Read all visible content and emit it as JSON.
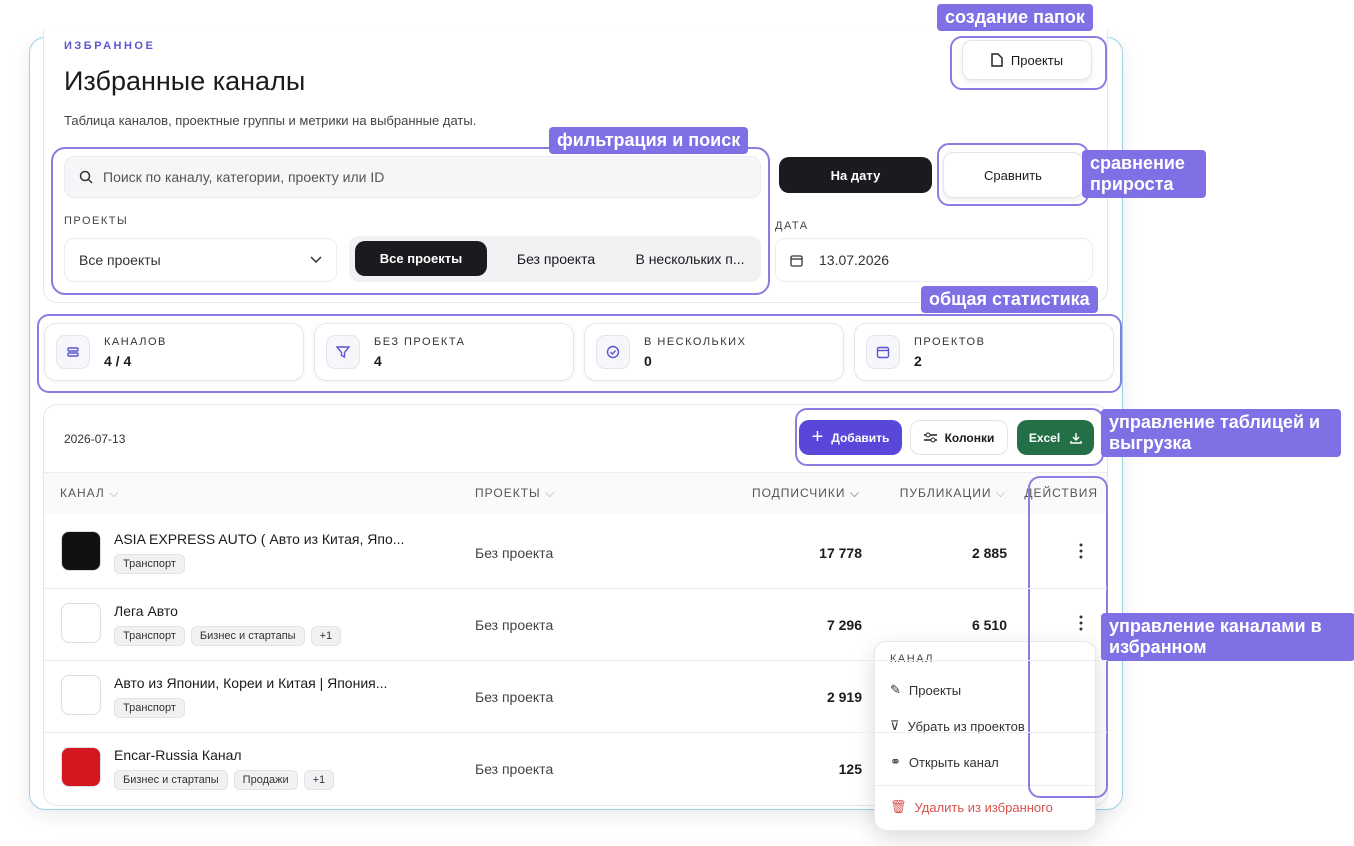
{
  "header": {
    "eyebrow": "ИЗБРАННОЕ",
    "title": "Избранные каналы",
    "subtitle": "Таблица каналов, проектные группы и метрики на выбранные даты.",
    "projects_button": "Проекты"
  },
  "filters": {
    "search_placeholder": "Поиск по каналу, категории, проекту или ID",
    "projects_label": "ПРОЕКТЫ",
    "projects_select": "Все проекты",
    "segments": [
      "Все проекты",
      "Без проекта",
      "В нескольких п..."
    ],
    "mode_buttons": [
      "На дату",
      "Сравнить"
    ],
    "date_label": "ДАТА",
    "date": "13.07.2026"
  },
  "stats": [
    {
      "label": "КАНАЛОВ",
      "value": "4 / 4"
    },
    {
      "label": "БЕЗ ПРОЕКТА",
      "value": "4"
    },
    {
      "label": "В НЕСКОЛЬКИХ",
      "value": "0"
    },
    {
      "label": "ПРОЕКТОВ",
      "value": "2"
    }
  ],
  "table": {
    "date": "2026-07-13",
    "buttons": [
      "Добавить",
      "Колонки",
      "Excel"
    ],
    "columns": [
      "КАНАЛ",
      "ПРОЕКТЫ",
      "ПОДПИСЧИКИ",
      "ПУБЛИКАЦИИ",
      "ДЕЙСТВИЯ"
    ],
    "rows": [
      {
        "name": "ASIA EXPRESS AUTO ( Авто из Китая, Япо...",
        "tags": [
          "Транспорт"
        ],
        "project": "Без проекта",
        "subscribers": "17 778",
        "publications": "2 885"
      },
      {
        "name": "Лега Авто",
        "tags": [
          "Транспорт",
          "Бизнес и стартапы",
          "+1"
        ],
        "project": "Без проекта",
        "subscribers": "7 296",
        "publications": "6 510"
      },
      {
        "name": "Авто из Японии, Кореи и Китая | Япония...",
        "tags": [
          "Транспорт"
        ],
        "project": "Без проекта",
        "subscribers": "2 919"
      },
      {
        "name": "Encar-Russia Канал",
        "tags": [
          "Бизнес и стартапы",
          "Продажи",
          "+1"
        ],
        "project": "Без проекта",
        "subscribers": "125"
      }
    ]
  },
  "menu": {
    "title": "КАНАЛ",
    "items": [
      "Проекты",
      "Убрать из проектов",
      "Открыть канал"
    ],
    "danger": "Удалить из избранного"
  },
  "annotations": [
    "создание папок",
    "фильтрация и поиск",
    "сравнение прироста",
    "общая статистика",
    "управление таблицей и выгрузка",
    "управление каналами в избранном"
  ]
}
